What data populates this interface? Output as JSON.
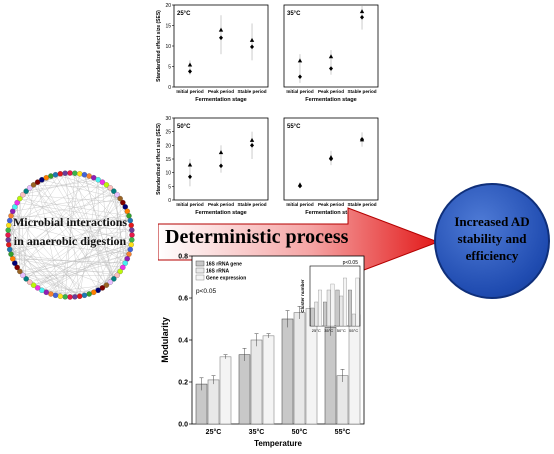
{
  "network": {
    "label_line1": "Microbial interactions",
    "label_line2": "in anaerobic digestion",
    "node_colors": [
      "#e6194b",
      "#3cb44b",
      "#ffe119",
      "#4363d8",
      "#f58231",
      "#911eb4",
      "#46f0f0",
      "#f032e6",
      "#bcf60c",
      "#fabebe",
      "#008080",
      "#e6beff",
      "#9a6324",
      "#800000",
      "#000075",
      "#ff7f00",
      "#33a02c",
      "#1f78b4",
      "#e31a1c",
      "#6a3d9a"
    ]
  },
  "arrow": {
    "label": "Deterministic process"
  },
  "outcome": {
    "line1": "Increased AD",
    "line2": "stability and",
    "line3": "efficiency"
  },
  "ses_panels": [
    {
      "temperature": "25°C",
      "ylabel": "Standardized effect size (SES)",
      "xlabel": "Fermentation stage",
      "categories": [
        "Initial period",
        "Peak period",
        "Stable period"
      ],
      "yticks": [
        0,
        5,
        10,
        15,
        20
      ],
      "ylim": [
        0,
        20
      ],
      "triangle": [
        5.5,
        14.0,
        11.5
      ],
      "diamond": [
        3.8,
        12.0,
        9.8
      ],
      "err_low": [
        3.0,
        8.0,
        6.5
      ],
      "err_high": [
        6.5,
        17.5,
        15.5
      ]
    },
    {
      "temperature": "35°C",
      "ylabel": "",
      "xlabel": "Fermentation stage",
      "categories": [
        "Initial period",
        "Peak period",
        "Stable period"
      ],
      "yticks": [],
      "ylim": [
        0,
        20
      ],
      "triangle": [
        6.5,
        7.5,
        18.5
      ],
      "diamond": [
        2.5,
        4.5,
        17.0
      ],
      "err_low": [
        1.0,
        3.0,
        14.0
      ],
      "err_high": [
        8.0,
        9.0,
        20.0
      ]
    },
    {
      "temperature": "50°C",
      "ylabel": "Standardized effect size (SES)",
      "xlabel": "Fermentation stage",
      "categories": [
        "Initial period",
        "Peak period",
        "Stable period"
      ],
      "yticks": [
        0,
        5,
        10,
        15,
        20,
        25,
        30
      ],
      "ylim": [
        0,
        30
      ],
      "triangle": [
        13.0,
        17.5,
        22.0
      ],
      "diamond": [
        8.5,
        12.5,
        20.0
      ],
      "err_low": [
        5.0,
        10.0,
        15.0
      ],
      "err_high": [
        15.0,
        20.0,
        25.0
      ]
    },
    {
      "temperature": "55°C",
      "ylabel": "",
      "xlabel": "Fermentation stage",
      "categories": [
        "Initial period",
        "Peak period",
        "Stable period"
      ],
      "yticks": [],
      "ylim": [
        0,
        20
      ],
      "triangle": [
        3.8,
        10.5,
        14.8
      ],
      "diamond": [
        3.4,
        10.0,
        14.8
      ],
      "err_low": [
        3.0,
        8.5,
        13.0
      ],
      "err_high": [
        4.2,
        12.0,
        16.5
      ]
    }
  ],
  "chart_data": {
    "type": "bar",
    "categories": [
      "25°C",
      "35°C",
      "50°C",
      "55°C"
    ],
    "series": [
      {
        "name": "16S rRNA gene",
        "values": [
          0.19,
          0.33,
          0.5,
          0.46
        ],
        "errors": [
          0.03,
          0.03,
          0.04,
          0.04
        ]
      },
      {
        "name": "16S rRNA",
        "values": [
          0.21,
          0.4,
          0.53,
          0.23
        ],
        "errors": [
          0.02,
          0.03,
          0.03,
          0.03
        ]
      },
      {
        "name": "Gene expression",
        "values": [
          0.32,
          0.42,
          0.55,
          0.52
        ],
        "errors": [
          0.01,
          0.01,
          0.01,
          0.01
        ]
      }
    ],
    "ylabel": "Modularity",
    "xlabel": "Temperature",
    "ylim": [
      0,
      0.8
    ],
    "yticks": [
      "0.0",
      "0.2",
      "0.4",
      "0.6",
      "0.8"
    ],
    "annotation": "p<0.05",
    "inset": {
      "ylabel": "Cluster number",
      "annotation": "p<0.05",
      "categories": [
        "25°C",
        "35°C",
        "50°C",
        "55°C"
      ],
      "series": [
        {
          "name": "16S rRNA gene",
          "values": [
            3,
            4,
            6,
            6
          ]
        },
        {
          "name": "16S rRNA",
          "values": [
            4,
            6,
            5,
            2
          ]
        },
        {
          "name": "Gene expression",
          "values": [
            6,
            7,
            8,
            8
          ]
        }
      ],
      "ylim": [
        0,
        10
      ]
    }
  }
}
